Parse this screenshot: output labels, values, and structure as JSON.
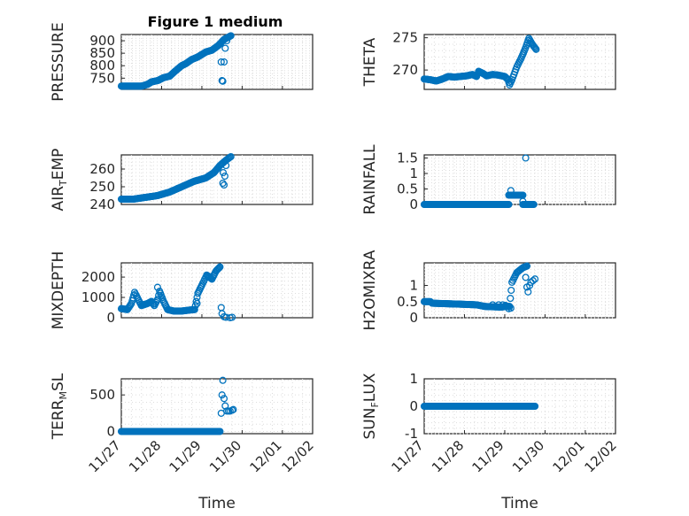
{
  "figure": {
    "title": "Figure 1 medium"
  },
  "colors": {
    "marker": "#0072BD",
    "axis": "#262626"
  },
  "chart_data": [
    {
      "type": "scatter",
      "panel": "top-left",
      "ylabel": "PRESSURE",
      "ylim": [
        705,
        925
      ],
      "yticks": [
        750,
        800,
        850,
        900
      ],
      "ytick_labels": [
        "750",
        "800",
        "850",
        "900"
      ],
      "xlim": [
        "11/27",
        "12/02"
      ],
      "grid": true,
      "anchors": [
        [
          0,
          718
        ],
        [
          0.5,
          718
        ],
        [
          0.65,
          725
        ],
        [
          0.75,
          735
        ],
        [
          0.9,
          740
        ],
        [
          1.05,
          752
        ],
        [
          1.2,
          758
        ],
        [
          1.35,
          780
        ],
        [
          1.5,
          800
        ],
        [
          1.6,
          808
        ],
        [
          1.75,
          825
        ],
        [
          1.9,
          835
        ],
        [
          2.0,
          845
        ],
        [
          2.1,
          855
        ],
        [
          2.25,
          862
        ],
        [
          2.4,
          880
        ],
        [
          2.55,
          905
        ],
        [
          2.72,
          920
        ]
      ],
      "outliers": [
        [
          2.48,
          815
        ],
        [
          2.55,
          815
        ],
        [
          2.5,
          740
        ],
        [
          2.52,
          738
        ],
        [
          2.58,
          870
        ],
        [
          2.62,
          900
        ]
      ]
    },
    {
      "type": "scatter",
      "panel": "top-right",
      "ylabel": "THETA",
      "ylim": [
        267,
        275.5
      ],
      "yticks": [
        270,
        275
      ],
      "ytick_labels": [
        "270",
        "275"
      ],
      "xlim": [
        "11/27",
        "12/02"
      ],
      "grid": true,
      "anchors": [
        [
          0,
          268.6
        ],
        [
          0.15,
          268.5
        ],
        [
          0.3,
          268.3
        ],
        [
          0.45,
          268.6
        ],
        [
          0.6,
          269.0
        ],
        [
          0.75,
          268.9
        ],
        [
          0.9,
          269.0
        ],
        [
          1.05,
          269.1
        ],
        [
          1.2,
          269.3
        ],
        [
          1.3,
          269.0
        ],
        [
          1.35,
          269.8
        ],
        [
          1.45,
          269.5
        ],
        [
          1.55,
          269.1
        ],
        [
          1.7,
          269.3
        ],
        [
          1.85,
          269.2
        ],
        [
          2.0,
          269.0
        ],
        [
          2.08,
          268.5
        ],
        [
          2.12,
          267.7
        ],
        [
          2.18,
          268.5
        ],
        [
          2.3,
          270.5
        ],
        [
          2.42,
          272.0
        ],
        [
          2.52,
          273.5
        ],
        [
          2.6,
          274.9
        ],
        [
          2.68,
          274.0
        ],
        [
          2.78,
          273.2
        ]
      ],
      "outliers": []
    },
    {
      "type": "scatter",
      "panel": "row2-left",
      "ylabel": "AIR_TEMP",
      "ylim": [
        240,
        268
      ],
      "yticks": [
        240,
        250,
        260
      ],
      "ytick_labels": [
        "240",
        "250",
        "260"
      ],
      "xlim": [
        "11/27",
        "12/02"
      ],
      "grid": true,
      "anchors": [
        [
          0,
          243
        ],
        [
          0.3,
          243
        ],
        [
          0.6,
          244
        ],
        [
          0.9,
          245
        ],
        [
          1.2,
          247
        ],
        [
          1.5,
          250
        ],
        [
          1.8,
          253
        ],
        [
          2.1,
          255
        ],
        [
          2.3,
          258
        ],
        [
          2.45,
          262
        ],
        [
          2.6,
          265
        ],
        [
          2.72,
          267
        ]
      ],
      "outliers": [
        [
          2.52,
          252
        ],
        [
          2.55,
          251
        ],
        [
          2.53,
          258
        ],
        [
          2.57,
          256
        ],
        [
          2.6,
          262
        ]
      ]
    },
    {
      "type": "scatter",
      "panel": "row2-right",
      "ylabel": "RAINFALL",
      "ylim": [
        0,
        1.6
      ],
      "yticks": [
        0,
        0.5,
        1,
        1.5
      ],
      "ytick_labels": [
        "0",
        "0.5",
        "1",
        "1.5"
      ],
      "xlim": [
        "11/27",
        "12/02"
      ],
      "grid": true,
      "anchors": [
        [
          0,
          0
        ],
        [
          2.1,
          0
        ],
        [
          2.1,
          0.3
        ],
        [
          2.45,
          0.3
        ],
        [
          2.45,
          0
        ],
        [
          2.72,
          0
        ]
      ],
      "outliers": [
        [
          2.15,
          0.45
        ],
        [
          2.2,
          0.3
        ],
        [
          2.45,
          0.1
        ],
        [
          2.52,
          1.5
        ]
      ]
    },
    {
      "type": "scatter",
      "panel": "row3-left",
      "ylabel": "MIXDEPTH",
      "ylim": [
        0,
        2700
      ],
      "yticks": [
        0,
        1000,
        2000
      ],
      "ytick_labels": [
        "0",
        "1000",
        "2000"
      ],
      "xlim": [
        "11/27",
        "12/02"
      ],
      "grid": true,
      "anchors": [
        [
          0,
          450
        ],
        [
          0.15,
          400
        ],
        [
          0.25,
          700
        ],
        [
          0.33,
          1250
        ],
        [
          0.42,
          900
        ],
        [
          0.5,
          600
        ],
        [
          0.65,
          700
        ],
        [
          0.75,
          800
        ],
        [
          0.82,
          600
        ],
        [
          0.9,
          900
        ],
        [
          0.95,
          1300
        ],
        [
          1.05,
          800
        ],
        [
          1.15,
          400
        ],
        [
          1.3,
          330
        ],
        [
          1.5,
          330
        ],
        [
          1.7,
          380
        ],
        [
          1.82,
          400
        ],
        [
          1.9,
          1200
        ],
        [
          2.0,
          1600
        ],
        [
          2.12,
          2100
        ],
        [
          2.25,
          1900
        ],
        [
          2.35,
          2300
        ],
        [
          2.45,
          2500
        ]
      ],
      "outliers": [
        [
          0.9,
          1500
        ],
        [
          1.88,
          700
        ],
        [
          2.48,
          500
        ],
        [
          2.5,
          200
        ],
        [
          2.55,
          50
        ],
        [
          2.6,
          20
        ],
        [
          2.7,
          0
        ],
        [
          2.75,
          20
        ]
      ]
    },
    {
      "type": "scatter",
      "panel": "row3-right",
      "ylabel": "H2OMIXRA",
      "ylim": [
        0,
        1.7
      ],
      "yticks": [
        0,
        0.5,
        1
      ],
      "ytick_labels": [
        "0",
        "0.5",
        "1"
      ],
      "xlim": [
        "11/27",
        "12/02"
      ],
      "grid": true,
      "anchors": [
        [
          0,
          0.5
        ],
        [
          0.15,
          0.5
        ],
        [
          0.2,
          0.45
        ],
        [
          0.9,
          0.42
        ],
        [
          1.3,
          0.4
        ],
        [
          1.5,
          0.35
        ],
        [
          1.9,
          0.33
        ],
        [
          2.05,
          0.35
        ],
        [
          2.12,
          0.35
        ],
        [
          2.18,
          1.1
        ],
        [
          2.3,
          1.4
        ],
        [
          2.45,
          1.55
        ],
        [
          2.55,
          1.6
        ]
      ],
      "outliers": [
        [
          1.7,
          0.4
        ],
        [
          1.85,
          0.4
        ],
        [
          1.95,
          0.4
        ],
        [
          2.02,
          0.38
        ],
        [
          2.1,
          0.28
        ],
        [
          2.15,
          0.3
        ],
        [
          2.52,
          1.25
        ],
        [
          2.55,
          0.95
        ],
        [
          2.58,
          0.8
        ],
        [
          2.62,
          1.0
        ],
        [
          2.65,
          1.1
        ],
        [
          2.7,
          1.15
        ],
        [
          2.75,
          1.2
        ]
      ]
    },
    {
      "type": "scatter",
      "panel": "bottom-left",
      "ylabel": "TERR_MSL",
      "ylim": [
        -30,
        720
      ],
      "yticks": [
        0,
        500
      ],
      "ytick_labels": [
        "0",
        "500"
      ],
      "xlim": [
        "11/27",
        "12/02"
      ],
      "grid": true,
      "xticks": [
        0,
        1,
        2,
        3,
        4
      ],
      "xtick_labels": [
        "11/27",
        "11/28",
        "11/29",
        "11/30",
        "12/01"
      ],
      "xlabel": "Time",
      "anchors": [
        [
          0,
          0
        ],
        [
          2.45,
          0
        ]
      ],
      "outliers": [
        [
          2.48,
          250
        ],
        [
          2.5,
          500
        ],
        [
          2.52,
          700
        ],
        [
          2.55,
          450
        ],
        [
          2.58,
          350
        ],
        [
          2.62,
          280
        ],
        [
          2.66,
          280
        ],
        [
          2.7,
          280
        ],
        [
          2.75,
          290
        ],
        [
          2.78,
          300
        ]
      ]
    },
    {
      "type": "scatter",
      "panel": "bottom-right",
      "ylabel": "SUN_FLUX",
      "ylim": [
        -1,
        1
      ],
      "yticks": [
        -1,
        0,
        1
      ],
      "ytick_labels": [
        "-1",
        "0",
        "1"
      ],
      "xlim": [
        "11/27",
        "12/02"
      ],
      "grid": true,
      "xticks": [
        0,
        1,
        2,
        3,
        4
      ],
      "xtick_labels": [
        "11/27",
        "11/28",
        "11/29",
        "11/30",
        "12/01"
      ],
      "xlabel": "Time",
      "anchors": [
        [
          0,
          0
        ],
        [
          2.75,
          0
        ]
      ],
      "outliers": []
    }
  ]
}
